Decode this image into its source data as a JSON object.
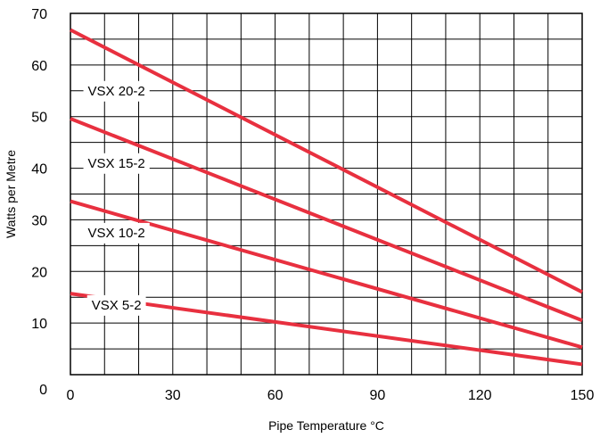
{
  "chart_data": {
    "type": "line",
    "title": "",
    "xlabel": "Pipe Temperature °C",
    "ylabel": "Watts per Metre",
    "xlim": [
      0,
      150
    ],
    "ylim": [
      0,
      70
    ],
    "x_ticks": [
      0,
      30,
      60,
      90,
      120,
      150
    ],
    "y_ticks": [
      0,
      10,
      20,
      30,
      40,
      50,
      60,
      70
    ],
    "grid": true,
    "grid_x_step": 10,
    "grid_y_step": 5,
    "line_color": "#e8303f",
    "series": [
      {
        "name": "VSX 20-2",
        "x": [
          0,
          150
        ],
        "values": [
          66.8,
          16.0
        ],
        "label_x": 13.5,
        "label_y": 55
      },
      {
        "name": "VSX 15-2",
        "x": [
          0,
          150
        ],
        "values": [
          49.6,
          10.5
        ],
        "label_x": 13.5,
        "label_y": 41
      },
      {
        "name": "VSX 10-2",
        "x": [
          0,
          150
        ],
        "values": [
          33.6,
          5.3
        ],
        "label_x": 13.5,
        "label_y": 27.5
      },
      {
        "name": "VSX 5-2",
        "x": [
          0,
          150
        ],
        "values": [
          15.7,
          2.0
        ],
        "label_x": 13.5,
        "label_y": 13.5
      }
    ]
  }
}
